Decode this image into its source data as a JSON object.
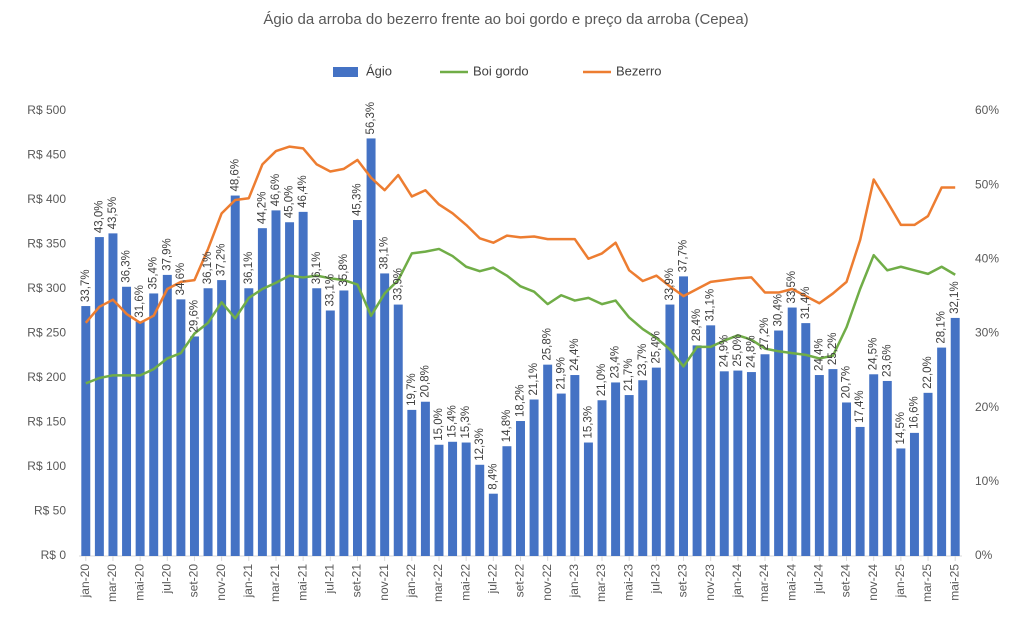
{
  "chart_data": {
    "type": "bar-line",
    "title": "Ágio da arroba do bezerro frente ao boi gordo e preço da arroba (Cepea)",
    "categories": [
      "jan-20",
      null,
      "mar-20",
      null,
      "mai-20",
      null,
      "jul-20",
      null,
      "set-20",
      null,
      "nov-20",
      null,
      "jan-21",
      null,
      "mar-21",
      null,
      "mai-21",
      null,
      "jul-21",
      null,
      "set-21",
      null,
      "nov-21",
      null,
      "jan-22",
      null,
      "mar-22",
      null,
      "mai-22",
      null,
      "jul-22",
      null,
      "set-22",
      null,
      "nov-22",
      null,
      "jan-23",
      null,
      "mar-23",
      null,
      "mai-23",
      null,
      "jul-23",
      null,
      "set-23",
      null,
      "nov-23",
      null,
      "jan-24",
      null,
      "mar-24",
      null,
      "mai-24",
      null,
      "jul-24",
      null,
      "set-24",
      null,
      "nov-24",
      null,
      "jan-25",
      null,
      "mar-25",
      null,
      "mai-25"
    ],
    "series": [
      {
        "name": "Ágio",
        "type": "bar",
        "axis": "y2",
        "color": "#4472c4",
        "values": [
          33.7,
          43.0,
          43.5,
          36.3,
          31.6,
          35.4,
          37.9,
          34.6,
          29.6,
          36.1,
          37.2,
          48.6,
          36.1,
          44.2,
          46.6,
          45.0,
          46.4,
          36.1,
          33.1,
          35.8,
          45.3,
          56.3,
          38.1,
          33.9,
          19.7,
          20.8,
          15.0,
          15.4,
          15.3,
          12.3,
          8.4,
          14.8,
          18.2,
          21.1,
          25.8,
          21.9,
          24.4,
          15.3,
          21.0,
          23.4,
          21.7,
          23.7,
          25.4,
          33.9,
          37.7,
          28.4,
          31.1,
          24.9,
          25.0,
          24.8,
          27.2,
          30.4,
          33.5,
          31.4,
          24.4,
          25.2,
          20.7,
          17.4,
          24.5,
          23.6,
          14.5,
          16.6,
          22.0,
          28.1,
          32.1
        ],
        "value_labels": [
          "33,7%",
          "43,0%",
          "43,5%",
          "36,3%",
          "31,6%",
          "35,4%",
          "37,9%",
          "34,6%",
          "29,6%",
          "36,1%",
          "37,2%",
          "48,6%",
          "36,1%",
          "44,2%",
          "46,6%",
          "45,0%",
          "46,4%",
          "36,1%",
          "33,1%",
          "35,8%",
          "45,3%",
          "56,3%",
          "38,1%",
          "33,9%",
          "19,7%",
          "20,8%",
          "15,0%",
          "15,4%",
          "15,3%",
          "12,3%",
          "8,4%",
          "14,8%",
          "18,2%",
          "21,1%",
          "25,8%",
          "21,9%",
          "24,4%",
          "15,3%",
          "21,0%",
          "23,4%",
          "21,7%",
          "23,7%",
          "25,4%",
          "33,9%",
          "37,7%",
          "28,4%",
          "31,1%",
          "24,9%",
          "25,0%",
          "24,8%",
          "27,2%",
          "30,4%",
          "33,5%",
          "31,4%",
          "24,4%",
          "25,2%",
          "20,7%",
          "17,4%",
          "24,5%",
          "23,6%",
          "14,5%",
          "16,6%",
          "22,0%",
          "28,1%",
          "32,1%"
        ]
      },
      {
        "name": "Boi gordo",
        "type": "line",
        "color": "#70ad47",
        "values": [
          194,
          200,
          203,
          203,
          203,
          210,
          222,
          228,
          250,
          262,
          285,
          267,
          290,
          300,
          307,
          315,
          313,
          315,
          312,
          310,
          305,
          270,
          295,
          310,
          340,
          342,
          345,
          337,
          325,
          320,
          324,
          315,
          303,
          297,
          283,
          293,
          287,
          290,
          283,
          287,
          268,
          255,
          245,
          232,
          213,
          235,
          235,
          242,
          248,
          243,
          233,
          230,
          228,
          226,
          222,
          225,
          257,
          300,
          338,
          321,
          325,
          321,
          317,
          325,
          316
        ]
      },
      {
        "name": "Bezerro",
        "type": "line",
        "color": "#ed7d31",
        "values": [
          262,
          280,
          288,
          272,
          262,
          270,
          300,
          308,
          310,
          345,
          385,
          400,
          402,
          440,
          455,
          460,
          458,
          440,
          432,
          435,
          445,
          425,
          411,
          428,
          404,
          411,
          395,
          385,
          372,
          357,
          352,
          360,
          358,
          359,
          356,
          356,
          356,
          334,
          340,
          352,
          321,
          309,
          315,
          303,
          292,
          300,
          308,
          310,
          312,
          313,
          296,
          296,
          300,
          292,
          284,
          295,
          308,
          355,
          423,
          398,
          372,
          372,
          382,
          414,
          414
        ]
      }
    ],
    "ylim": [
      0,
      500
    ],
    "yticks": [
      {
        "value": 0,
        "label": "R$ 0"
      },
      {
        "value": 50,
        "label": "R$ 50"
      },
      {
        "value": 100,
        "label": "R$ 100"
      },
      {
        "value": 150,
        "label": "R$ 150"
      },
      {
        "value": 200,
        "label": "R$ 200"
      },
      {
        "value": 250,
        "label": "R$ 250"
      },
      {
        "value": 300,
        "label": "R$ 300"
      },
      {
        "value": 350,
        "label": "R$ 350"
      },
      {
        "value": 400,
        "label": "R$ 400"
      },
      {
        "value": 450,
        "label": "R$ 450"
      },
      {
        "value": 500,
        "label": "R$ 500"
      }
    ],
    "y2lim": [
      0,
      60
    ],
    "y2ticks": [
      {
        "value": 0,
        "label": "0%"
      },
      {
        "value": 10,
        "label": "10%"
      },
      {
        "value": 20,
        "label": "20%"
      },
      {
        "value": 30,
        "label": "30%"
      },
      {
        "value": 40,
        "label": "40%"
      },
      {
        "value": 50,
        "label": "50%"
      },
      {
        "value": 60,
        "label": "60%"
      }
    ],
    "legend": "top"
  }
}
